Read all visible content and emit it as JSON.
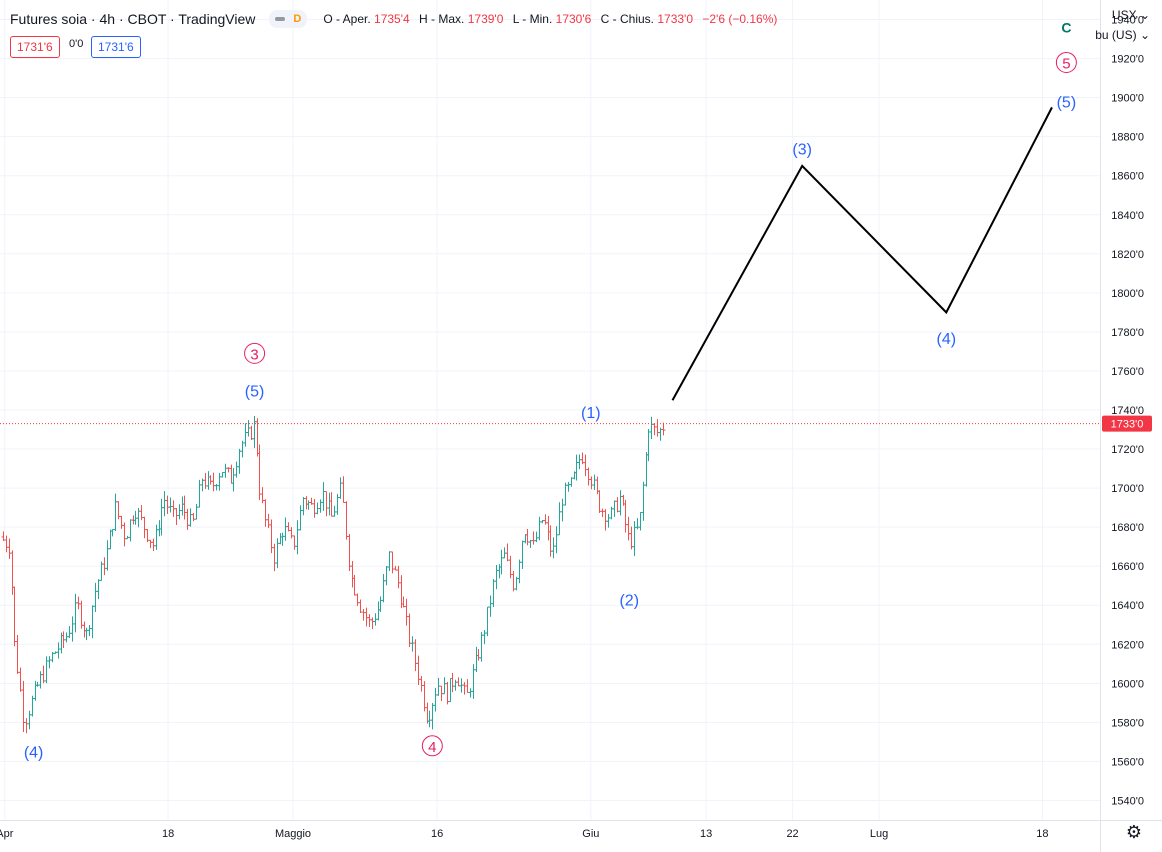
{
  "legend": {
    "title": "Futures soia · 4h · CBOT · TradingView",
    "interval_badge": "D",
    "open_label": "O - Aper.",
    "open": "1735'4",
    "high_label": "H - Max.",
    "high": "1739'0",
    "low_label": "L - Min.",
    "low": "1730'6",
    "close_label": "C - Chius.",
    "close": "1733'0",
    "change": "−2'6 (−0.16%)"
  },
  "trade": {
    "sell_price": "1731'6",
    "spread": "0'0",
    "buy_price": "1731'6"
  },
  "scale": {
    "currency": "USX",
    "unit": "bu (US)"
  },
  "colors": {
    "up": "#26a69a",
    "down": "#ef5350",
    "wave_blue": "#2962ff",
    "wave_pink": "#e91e63",
    "wave_green": "#00796b",
    "projection": "#000000",
    "price_line": "#f23645"
  },
  "chart_data": {
    "type": "ohlc",
    "symbol": "Futures soia",
    "interval": "4h",
    "ylim": [
      1530,
      1950
    ],
    "y_ticks": [
      1540,
      1560,
      1580,
      1600,
      1620,
      1640,
      1660,
      1680,
      1700,
      1720,
      1740,
      1760,
      1780,
      1800,
      1820,
      1840,
      1860,
      1880,
      1900,
      1920,
      1940
    ],
    "y_tick_labels": [
      "1540'0",
      "1560'0",
      "1580'0",
      "1600'0",
      "1620'0",
      "1640'0",
      "1660'0",
      "1680'0",
      "1700'0",
      "1720'0",
      "1740'0",
      "1760'0",
      "1780'0",
      "1800'0",
      "1820'0",
      "1840'0",
      "1860'0",
      "1880'0",
      "1900'0",
      "1920'0",
      "1940'0"
    ],
    "x_ticks": [
      {
        "label": "Apr",
        "day": 1
      },
      {
        "label": "18",
        "day": 18
      },
      {
        "label": "Maggio",
        "day": 31
      },
      {
        "label": "16",
        "day": 46
      },
      {
        "label": "Giu",
        "day": 62
      },
      {
        "label": "13",
        "day": 74
      },
      {
        "label": "22",
        "day": 83
      },
      {
        "label": "Lug",
        "day": 92
      },
      {
        "label": "18",
        "day": 109
      }
    ],
    "x_range_days": [
      0.5,
      115
    ],
    "current_price": 1733,
    "current_price_label": "1733'0",
    "price_path": [
      [
        0.5,
        1675
      ],
      [
        1.5,
        1670
      ],
      [
        2,
        1620
      ],
      [
        3,
        1580
      ],
      [
        4.5,
        1600
      ],
      [
        6,
        1615
      ],
      [
        7.5,
        1625
      ],
      [
        8.5,
        1640
      ],
      [
        9.5,
        1625
      ],
      [
        10.5,
        1650
      ],
      [
        11.5,
        1665
      ],
      [
        12.5,
        1690
      ],
      [
        13.5,
        1675
      ],
      [
        14.5,
        1690
      ],
      [
        15.5,
        1680
      ],
      [
        16.5,
        1670
      ],
      [
        17.5,
        1695
      ],
      [
        18.5,
        1685
      ],
      [
        19.5,
        1690
      ],
      [
        20.5,
        1680
      ],
      [
        21.5,
        1705
      ],
      [
        22.5,
        1700
      ],
      [
        23.5,
        1710
      ],
      [
        24.5,
        1705
      ],
      [
        25.5,
        1722
      ],
      [
        26.5,
        1728
      ],
      [
        27,
        1733
      ],
      [
        27.5,
        1700
      ],
      [
        28,
        1685
      ],
      [
        29,
        1665
      ],
      [
        30,
        1680
      ],
      [
        31,
        1670
      ],
      [
        32,
        1695
      ],
      [
        33,
        1690
      ],
      [
        34,
        1698
      ],
      [
        35,
        1685
      ],
      [
        36,
        1700
      ],
      [
        37,
        1655
      ],
      [
        38,
        1640
      ],
      [
        39,
        1630
      ],
      [
        40,
        1640
      ],
      [
        41,
        1665
      ],
      [
        42,
        1650
      ],
      [
        43,
        1625
      ],
      [
        44,
        1605
      ],
      [
        45,
        1582
      ],
      [
        46,
        1600
      ],
      [
        47,
        1595
      ],
      [
        48,
        1605
      ],
      [
        49,
        1592
      ],
      [
        50,
        1610
      ],
      [
        51,
        1630
      ],
      [
        52,
        1655
      ],
      [
        53,
        1665
      ],
      [
        54,
        1650
      ],
      [
        55,
        1680
      ],
      [
        56,
        1670
      ],
      [
        57,
        1685
      ],
      [
        58,
        1665
      ],
      [
        59,
        1695
      ],
      [
        60,
        1702
      ],
      [
        61,
        1718
      ],
      [
        62,
        1705
      ],
      [
        63,
        1690
      ],
      [
        64,
        1685
      ],
      [
        65,
        1695
      ],
      [
        66,
        1672
      ],
      [
        67,
        1680
      ],
      [
        68,
        1732
      ],
      [
        69,
        1728
      ],
      [
        69.7,
        1733
      ]
    ],
    "projection_path": [
      {
        "day": 70.5,
        "price": 1745
      },
      {
        "day": 84,
        "price": 1865
      },
      {
        "day": 99,
        "price": 1790
      },
      {
        "day": 110,
        "price": 1895
      }
    ],
    "annotations": [
      {
        "text": "(4)",
        "day": 4,
        "price": 1565,
        "style": "blue"
      },
      {
        "text": "(5)",
        "day": 27,
        "price": 1750,
        "style": "blue"
      },
      {
        "text": "3",
        "day": 27,
        "price": 1769,
        "style": "pink-circle"
      },
      {
        "text": "4",
        "day": 45.5,
        "price": 1568,
        "style": "pink-circle"
      },
      {
        "text": "(1)",
        "day": 62,
        "price": 1739,
        "style": "blue"
      },
      {
        "text": "(2)",
        "day": 66,
        "price": 1643,
        "style": "blue"
      },
      {
        "text": "(3)",
        "day": 84,
        "price": 1874,
        "style": "blue"
      },
      {
        "text": "(4)",
        "day": 99,
        "price": 1777,
        "style": "blue"
      },
      {
        "text": "(5)",
        "day": 111.5,
        "price": 1898,
        "style": "blue"
      },
      {
        "text": "5",
        "day": 111.5,
        "price": 1918,
        "style": "pink-circle"
      },
      {
        "text": "C",
        "day": 111.5,
        "price": 1936,
        "style": "green"
      }
    ]
  }
}
